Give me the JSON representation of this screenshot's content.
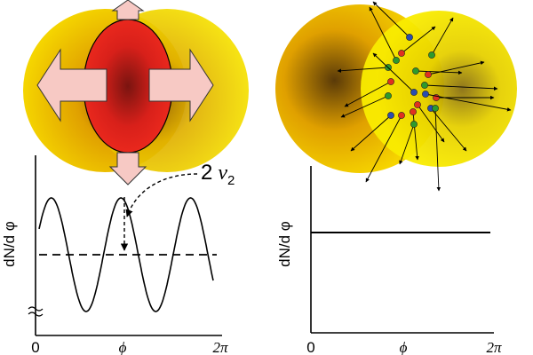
{
  "left_panel": {
    "ylabel": "dN/d φ",
    "flow_label_num": "2",
    "flow_label_v": "v",
    "flow_label_sub": "2",
    "x_start": "0",
    "x_mid": "ϕ",
    "x_end": "2π",
    "curve_cycles": 2.5,
    "baseline_level": 0.55,
    "amplitude_fraction": 0.45
  },
  "right_panel": {
    "ylabel": "dN/d φ",
    "x_start": "0",
    "x_mid": "ϕ",
    "x_end": "2π",
    "level": 0.55
  },
  "colors": {
    "nucleus_outer": "#f3d400",
    "nucleus_dark": "#a0620a",
    "almond": "#e8241a",
    "arrow_fill": "#f7c9c4",
    "particle_red": "#e03020",
    "particle_green": "#2d9a2d",
    "particle_blue": "#2a4db0"
  }
}
